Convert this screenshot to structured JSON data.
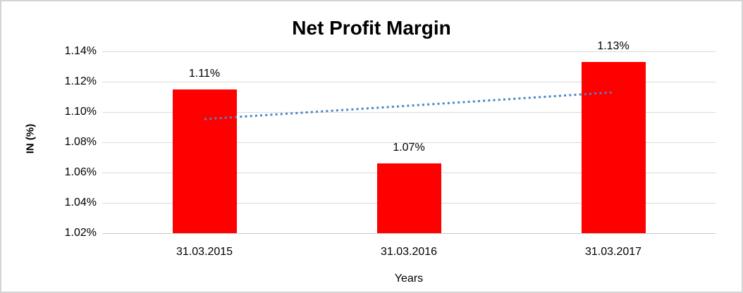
{
  "chart_data": {
    "type": "bar",
    "title": "Net Profit Margin",
    "xlabel": "Years",
    "ylabel": "IN (%)",
    "categories": [
      "31.03.2015",
      "31.03.2016",
      "31.03.2017"
    ],
    "values": [
      1.11,
      1.07,
      1.13
    ],
    "values_precise": [
      1.115,
      1.066,
      1.133
    ],
    "data_labels": [
      "1.11%",
      "1.07%",
      "1.13%"
    ],
    "y_ticks": [
      {
        "label": "1.14%",
        "value": 1.14
      },
      {
        "label": "1.12%",
        "value": 1.12
      },
      {
        "label": "1.10%",
        "value": 1.1
      },
      {
        "label": "1.08%",
        "value": 1.08
      },
      {
        "label": "1.06%",
        "value": 1.06
      },
      {
        "label": "1.04%",
        "value": 1.04
      },
      {
        "label": "1.02%",
        "value": 1.02
      }
    ],
    "ylim": [
      1.02,
      1.14
    ],
    "gridlines": true,
    "legend": "none",
    "bar_color": "#FF0000",
    "gridline_color": "#D9D9D9",
    "axis_line_color": "#C8C8C8",
    "text_color": "#000000",
    "trendline": {
      "type": "linear",
      "style": "dotted",
      "color": "#4A86C8",
      "start_value": 1.0953,
      "end_value": 1.113
    }
  }
}
